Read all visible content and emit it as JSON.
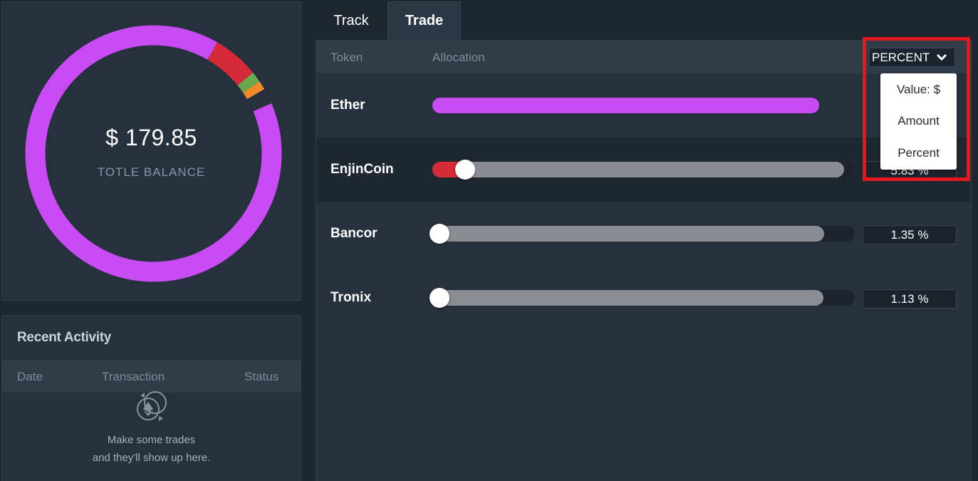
{
  "balance": {
    "value": "$ 179.85",
    "label": "TOTLE BALANCE",
    "donut_segments": [
      {
        "token": "Ether",
        "share": 0.897,
        "color": "#c84bf4"
      },
      {
        "token": "EnjinCoin",
        "share": 0.0583,
        "color": "#d42a3a"
      },
      {
        "token": "Bancor",
        "share": 0.0135,
        "color": "#6aa84f"
      },
      {
        "token": "Tronix",
        "share": 0.0113,
        "color": "#f28a2c"
      }
    ]
  },
  "activity": {
    "title": "Recent Activity",
    "columns": [
      "Date",
      "Transaction",
      "Status"
    ],
    "empty_line1": "Make some trades",
    "empty_line2": "and they'll show up here."
  },
  "tabs": {
    "track": "Track",
    "trade": "Trade"
  },
  "trade": {
    "columns": {
      "token": "Token",
      "allocation": "Allocation"
    },
    "unit_select": "PERCENT",
    "unit_options": [
      "Value: $",
      "Amount",
      "Percent"
    ],
    "rows": [
      {
        "token": "Ether",
        "percent": "",
        "fill": 0.915,
        "color": "#c84bf4",
        "slider": false
      },
      {
        "token": "EnjinCoin",
        "percent": "5.83 %",
        "fill": 0.975,
        "segment": 0.06,
        "color": "#d42a3a",
        "slider": true
      },
      {
        "token": "Bancor",
        "percent": "1.35 %",
        "fill": 0.928,
        "segment": 0.0,
        "color": "#8a8d93",
        "slider": true
      },
      {
        "token": "Tronix",
        "percent": "1.13 %",
        "fill": 0.926,
        "segment": 0.0,
        "color": "#8a8d93",
        "slider": true
      }
    ]
  }
}
